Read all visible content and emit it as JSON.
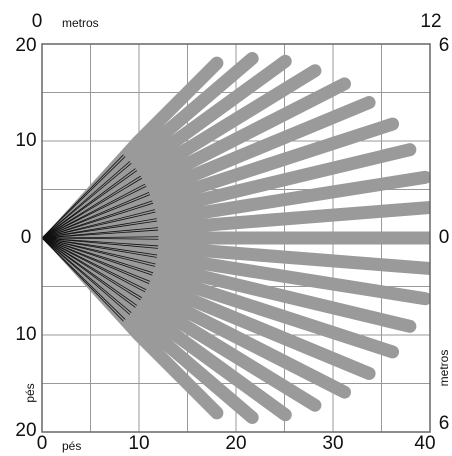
{
  "top_axis": {
    "ticks": [
      "0",
      "12"
    ],
    "unit": "metros"
  },
  "bottom_axis": {
    "ticks": [
      "0",
      "10",
      "20",
      "30",
      "40"
    ],
    "unit": "pés"
  },
  "left_axis": {
    "ticks": [
      "20",
      "10",
      "0",
      "10",
      "20"
    ],
    "unit": "pés"
  },
  "right_axis": {
    "ticks": [
      "6",
      "0",
      "6"
    ],
    "unit": "metros"
  },
  "colors": {
    "grid": "#999999",
    "beam": "#9a9a9a",
    "origin_lines": "#111111"
  },
  "detection_pattern": {
    "origin": {
      "x_ft": 0,
      "y_ft": 0
    },
    "x_range_ft": [
      0,
      40
    ],
    "y_range_ft": [
      -20,
      20
    ],
    "beams": [
      {
        "angle_deg": 45.0,
        "reach_ft": 25.5
      },
      {
        "angle_deg": 40.5,
        "reach_ft": 28.5
      },
      {
        "angle_deg": 36.0,
        "reach_ft": 31.0
      },
      {
        "angle_deg": 31.5,
        "reach_ft": 33.0
      },
      {
        "angle_deg": 27.0,
        "reach_ft": 35.0
      },
      {
        "angle_deg": 22.5,
        "reach_ft": 36.5
      },
      {
        "angle_deg": 18.0,
        "reach_ft": 38.0
      },
      {
        "angle_deg": 13.5,
        "reach_ft": 39.0
      },
      {
        "angle_deg": 9.0,
        "reach_ft": 40.0
      },
      {
        "angle_deg": 4.5,
        "reach_ft": 40.5
      },
      {
        "angle_deg": 0.0,
        "reach_ft": 41.0
      },
      {
        "angle_deg": -4.5,
        "reach_ft": 40.5
      },
      {
        "angle_deg": -9.0,
        "reach_ft": 40.0
      },
      {
        "angle_deg": -13.5,
        "reach_ft": 39.0
      },
      {
        "angle_deg": -18.0,
        "reach_ft": 38.0
      },
      {
        "angle_deg": -22.5,
        "reach_ft": 36.5
      },
      {
        "angle_deg": -27.0,
        "reach_ft": 35.0
      },
      {
        "angle_deg": -31.5,
        "reach_ft": 33.0
      },
      {
        "angle_deg": -36.0,
        "reach_ft": 31.0
      },
      {
        "angle_deg": -40.5,
        "reach_ft": 28.5
      },
      {
        "angle_deg": -45.0,
        "reach_ft": 25.5
      }
    ]
  }
}
